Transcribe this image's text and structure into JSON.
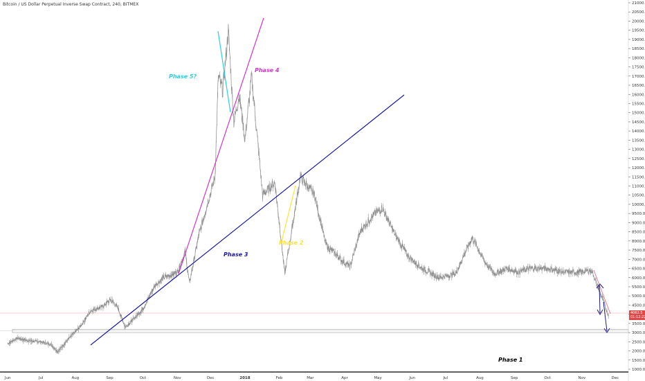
{
  "chart_data": {
    "type": "line",
    "title": "Bitcoin / US Dollar Perpetual Inverse Swap Contract, 240, BITMEX",
    "xlabel": "",
    "ylabel": "",
    "ylim": [
      1000,
      21000
    ],
    "y_ticks": [
      1000.0,
      1500.0,
      2000.0,
      2500.0,
      3000.0,
      3500.0,
      4000.0,
      4500.0,
      5000.0,
      5500.0,
      6000.0,
      6500.0,
      7000.0,
      7500.0,
      8000.0,
      8500.0,
      9000.0,
      9500.0,
      10000.0,
      10500.0,
      11000.0,
      11500.0,
      12000.0,
      12500.0,
      13000.0,
      13500.0,
      14000.0,
      14500.0,
      15000.0,
      15500.0,
      16000.0,
      16500.0,
      17000.0,
      17500.0,
      18000.0,
      18500.0,
      19000.0,
      19500.0,
      20000.0,
      20500.0,
      21000.0
    ],
    "x_ticks": [
      "Jun",
      "Jul",
      "Aug",
      "Sep",
      "Oct",
      "Nov",
      "Dec",
      "2018",
      "Feb",
      "Mar",
      "Apr",
      "May",
      "Jun",
      "Jul",
      "Aug",
      "Sep",
      "Oct",
      "Nov",
      "Dec"
    ],
    "current_price": {
      "value": "4062.5",
      "countdown": "01:12:22"
    },
    "series": [
      {
        "color": "#9e9e9e",
        "x": [
          "2017-06-01",
          "2017-06-10",
          "2017-06-20",
          "2017-07-01",
          "2017-07-10",
          "2017-07-16",
          "2017-07-25",
          "2017-08-05",
          "2017-08-15",
          "2017-08-25",
          "2017-09-02",
          "2017-09-08",
          "2017-09-15",
          "2017-09-22",
          "2017-10-01",
          "2017-10-12",
          "2017-10-20",
          "2017-11-01",
          "2017-11-08",
          "2017-11-12",
          "2017-11-20",
          "2017-11-28",
          "2017-12-05",
          "2017-12-08",
          "2017-12-12",
          "2017-12-17",
          "2017-12-22",
          "2017-12-27",
          "2018-01-01",
          "2018-01-07",
          "2018-01-17",
          "2018-01-28",
          "2018-02-01",
          "2018-02-06",
          "2018-02-12",
          "2018-02-20",
          "2018-03-05",
          "2018-03-15",
          "2018-04-01",
          "2018-04-06",
          "2018-04-15",
          "2018-04-25",
          "2018-05-05",
          "2018-05-15",
          "2018-05-28",
          "2018-06-10",
          "2018-06-25",
          "2018-07-10",
          "2018-07-25",
          "2018-08-05",
          "2018-08-14",
          "2018-08-25",
          "2018-09-05",
          "2018-09-15",
          "2018-10-01",
          "2018-10-15",
          "2018-10-30",
          "2018-11-10",
          "2018-11-14",
          "2018-11-20",
          "2018-11-25"
        ],
        "values": [
          2400,
          2700,
          2550,
          2500,
          2350,
          1950,
          2600,
          3300,
          4200,
          4400,
          4800,
          4400,
          3300,
          3700,
          4300,
          5600,
          6000,
          6300,
          7400,
          5700,
          8200,
          10000,
          11500,
          17000,
          16200,
          19500,
          14500,
          16000,
          13500,
          17000,
          10500,
          11200,
          9000,
          6200,
          8500,
          11500,
          10500,
          7800,
          6800,
          6600,
          8500,
          9300,
          9800,
          8500,
          7200,
          6500,
          6000,
          6200,
          8200,
          6900,
          6200,
          6500,
          6300,
          6500,
          6500,
          6300,
          6300,
          6400,
          5700,
          4800,
          3900
        ]
      }
    ],
    "annotations": [
      "Phase 5?",
      "Phase 4",
      "Phase 3",
      "Phase 2",
      "Phase 1"
    ]
  }
}
